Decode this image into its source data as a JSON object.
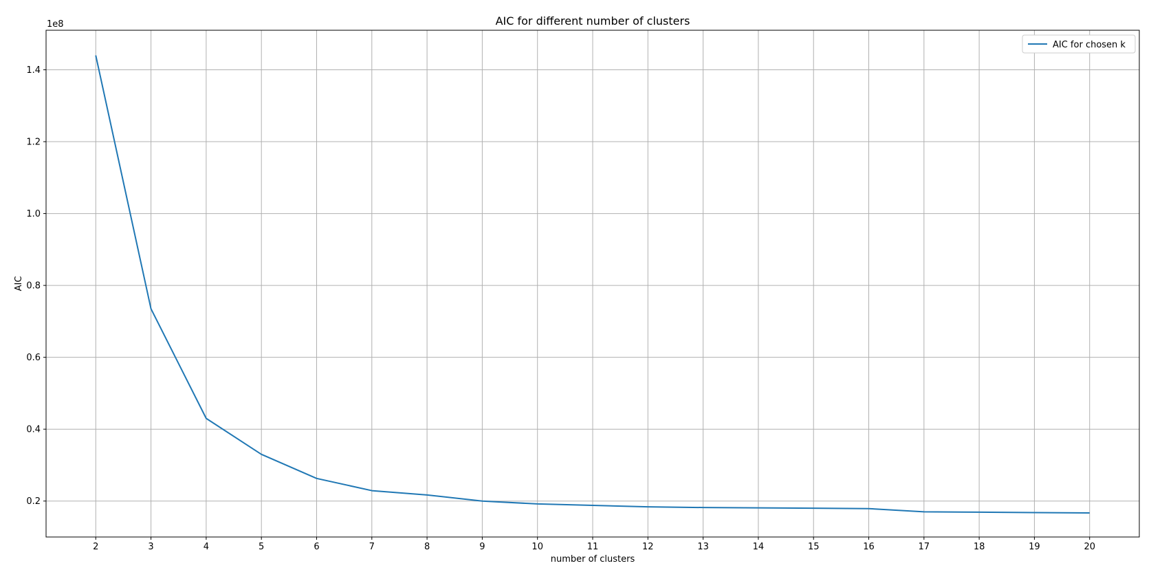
{
  "chart_data": {
    "type": "line",
    "title": "AIC for different number of clusters",
    "xlabel": "number of clusters",
    "ylabel": "AIC",
    "y_offset_label": "1e8",
    "y_scale_factor": 100000000,
    "x": [
      2,
      3,
      4,
      5,
      6,
      7,
      8,
      9,
      10,
      11,
      12,
      13,
      14,
      15,
      16,
      17,
      18,
      19,
      20
    ],
    "x_ticks": [
      "2",
      "3",
      "4",
      "5",
      "6",
      "7",
      "8",
      "9",
      "10",
      "11",
      "12",
      "13",
      "14",
      "15",
      "16",
      "17",
      "18",
      "19",
      "20"
    ],
    "y_ticks": [
      "0.2",
      "0.4",
      "0.6",
      "0.8",
      "1.0",
      "1.2",
      "1.4"
    ],
    "y_tick_values": [
      0.2,
      0.4,
      0.6,
      0.8,
      1.0,
      1.2,
      1.4
    ],
    "xlim": [
      1.1,
      20.9
    ],
    "ylim": [
      0.1,
      1.51
    ],
    "grid": true,
    "legend_position": "top-right",
    "series": [
      {
        "name": "AIC for chosen k",
        "color": "#1f77b4",
        "values": [
          1.44,
          0.735,
          0.43,
          0.33,
          0.263,
          0.229,
          0.217,
          0.2,
          0.192,
          0.188,
          0.184,
          0.182,
          0.181,
          0.18,
          0.179,
          0.17,
          0.169,
          0.168,
          0.167
        ]
      }
    ]
  }
}
